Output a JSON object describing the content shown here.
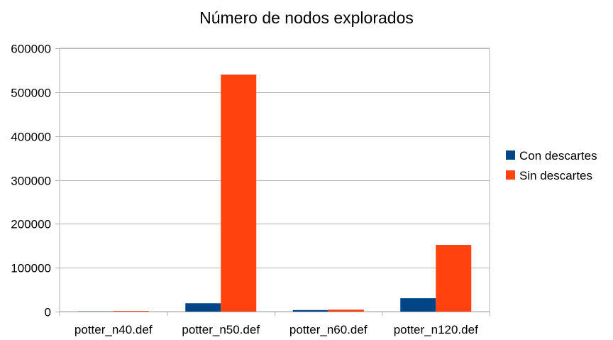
{
  "chart_data": {
    "type": "bar",
    "title": "Número de nodos explorados",
    "xlabel": "",
    "ylabel": "",
    "categories": [
      "potter_n40.def",
      "potter_n50.def",
      "potter_n60.def",
      "potter_n120.def"
    ],
    "series": [
      {
        "name": "Con descartes",
        "color": "#004586",
        "values": [
          500,
          19000,
          3500,
          30500
        ]
      },
      {
        "name": "Sin descartes",
        "color": "#ff420e",
        "values": [
          1500,
          540000,
          4500,
          152000
        ]
      }
    ],
    "ylim": [
      0,
      600000
    ],
    "yticks": [
      0,
      100000,
      200000,
      300000,
      400000,
      500000,
      600000
    ],
    "grid": true,
    "legend_position": "right"
  }
}
